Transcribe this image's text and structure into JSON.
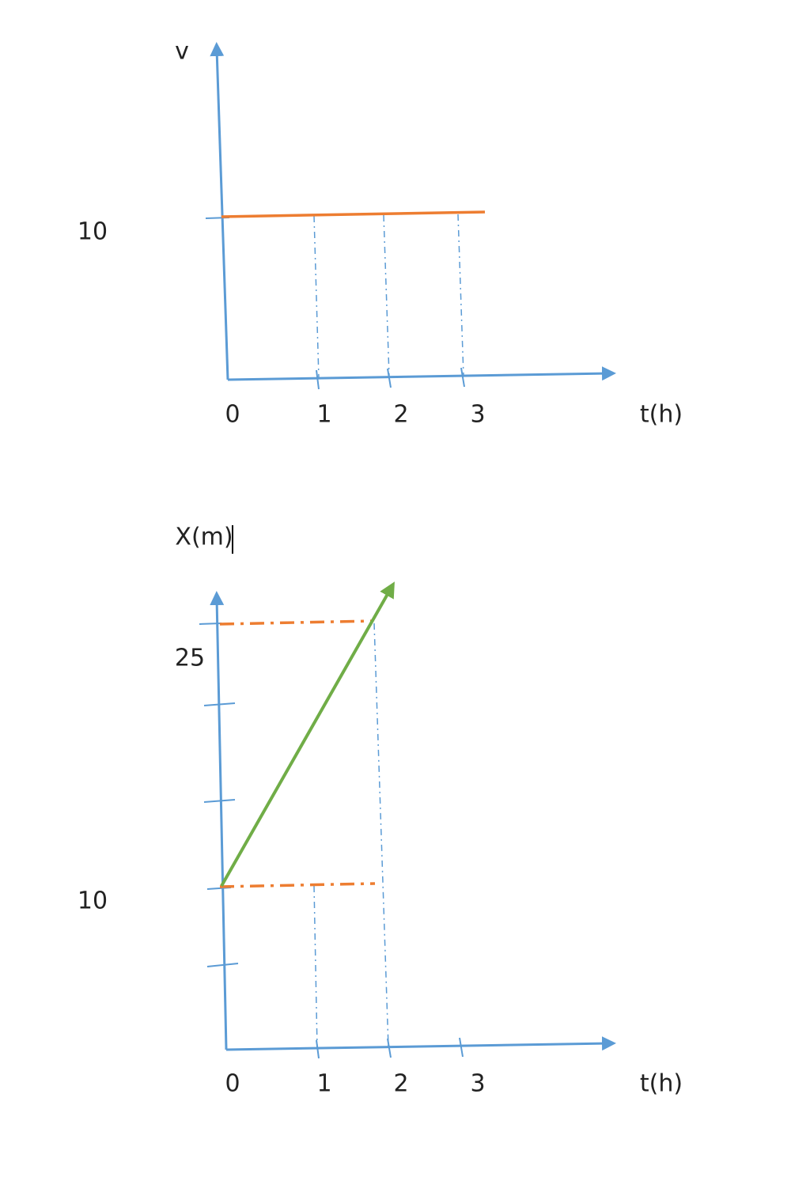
{
  "graphs": [
    {
      "y_label": "v",
      "y_tick_labels": [
        "10"
      ],
      "x_tick_labels": [
        "0",
        "1",
        "2",
        "3"
      ],
      "x_label": "t(h)"
    },
    {
      "y_label": "X(m)",
      "y_tick_labels": [
        "25",
        "10"
      ],
      "x_tick_labels": [
        "0",
        "1",
        "2",
        "3"
      ],
      "x_label": "t(h)"
    }
  ]
}
